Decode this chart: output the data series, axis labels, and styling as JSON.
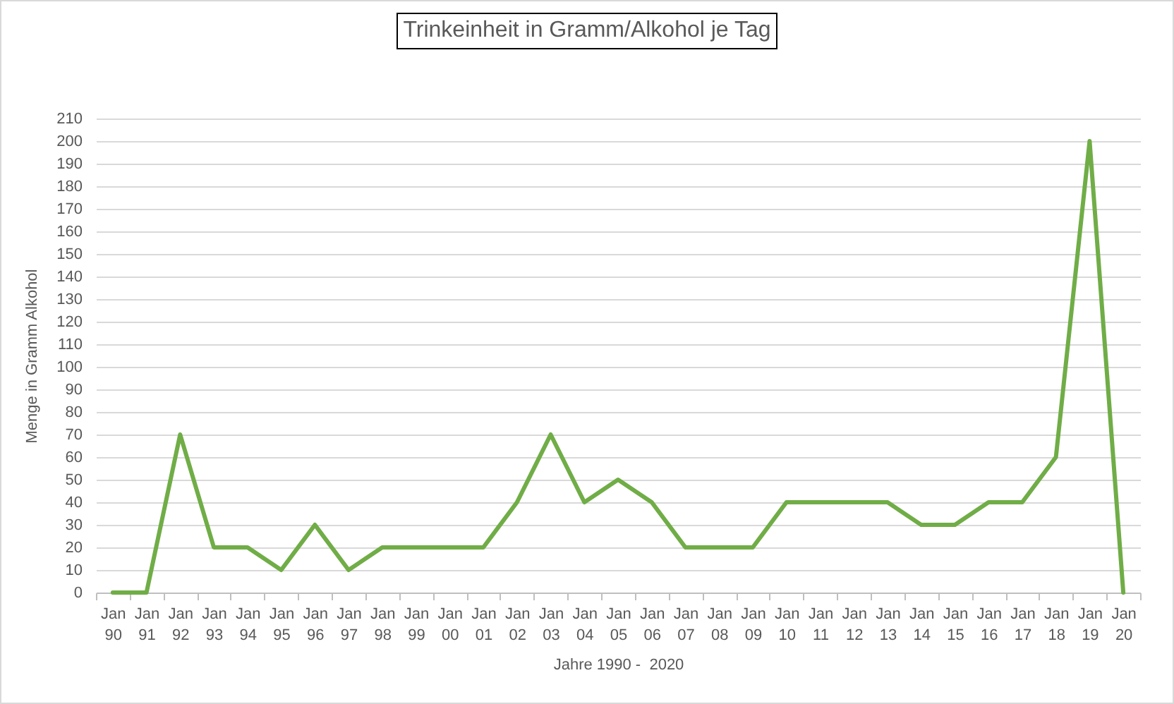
{
  "chart_data": {
    "type": "line",
    "title": "Trinkeinheit in Gramm/Alkohol je Tag",
    "xlabel": "Jahre 1990 -  2020",
    "ylabel": "Menge in Gramm Alkohol",
    "categories": [
      "Jan 90",
      "Jan 91",
      "Jan 92",
      "Jan 93",
      "Jan 94",
      "Jan 95",
      "Jan 96",
      "Jan 97",
      "Jan 98",
      "Jan 99",
      "Jan 00",
      "Jan 01",
      "Jan 02",
      "Jan 03",
      "Jan 04",
      "Jan 05",
      "Jan 06",
      "Jan 07",
      "Jan 08",
      "Jan 09",
      "Jan 10",
      "Jan 11",
      "Jan 12",
      "Jan 13",
      "Jan 14",
      "Jan 15",
      "Jan 16",
      "Jan 17",
      "Jan 18",
      "Jan 19",
      "Jan 20"
    ],
    "values": [
      0,
      0,
      70,
      20,
      20,
      10,
      30,
      10,
      20,
      20,
      20,
      20,
      40,
      70,
      40,
      50,
      40,
      20,
      20,
      20,
      40,
      40,
      40,
      40,
      30,
      30,
      40,
      40,
      60,
      200,
      0
    ],
    "color": "#70ad47",
    "ylim": [
      0,
      210
    ],
    "yticks": [
      0,
      10,
      20,
      30,
      40,
      50,
      60,
      70,
      80,
      90,
      100,
      110,
      120,
      130,
      140,
      150,
      160,
      170,
      180,
      190,
      200,
      210
    ],
    "grid": "y",
    "line_style": "solid"
  }
}
